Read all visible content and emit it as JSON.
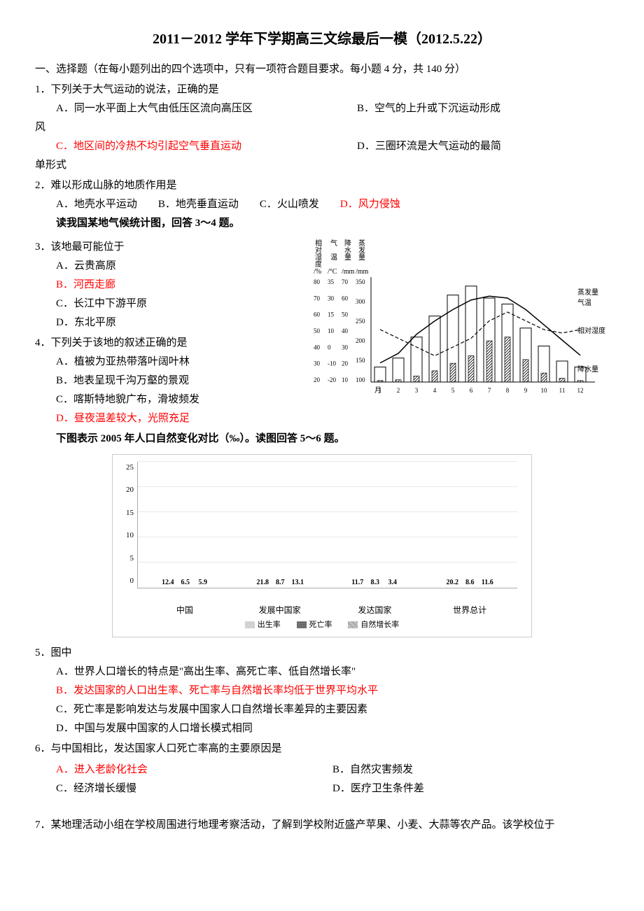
{
  "title": "2011－2012 学年下学期高三文综最后一模（2012.5.22）",
  "section1": {
    "header": "一、选择题（在每小题列出的四个选项中，只有一项符合题目要求。每小题 4 分，共 140 分）"
  },
  "q1": {
    "text": "1．下列关于大气运动的说法，正确的是",
    "optA": "A．同一水平面上大气由低压区流向高压区",
    "optB": "B．空气的上升或下沉运动形成",
    "wrapB": "风",
    "optC": "C．地区间的冷热不均引起空气垂直运动",
    "optD": "D．三圈环流是大气运动的最简",
    "wrapD": "单形式"
  },
  "q2": {
    "text": "2．难以形成山脉的地质作用是",
    "optA": "A．地壳水平运动",
    "optB": "B．地壳垂直运动",
    "optC": "C．火山喷发",
    "optD": "D．风力侵蚀",
    "note": "读我国某地气候统计图，回答 3～4 题。"
  },
  "q3": {
    "text": "3．该地最可能位于",
    "optA": "A．云贵高原",
    "optB": "B．河西走廊",
    "optC": "C．长江中下游平原",
    "optD": "D．东北平原"
  },
  "q4": {
    "text": "4．下列关于该地的叙述正确的是",
    "optA": "A．植被为亚热带落叶阔叶林",
    "optB": "B．地表呈现千沟万壑的景观",
    "optC": "C．喀斯特地貌广布，滑坡频发",
    "optD": "D．昼夜温差较大，光照充足",
    "note": "下图表示 2005 年人口自然变化对比（‰）。读图回答 5～6 题。"
  },
  "climate_chart": {
    "y_axis_1": {
      "label": "相对湿度/%",
      "ticks": [
        80,
        70,
        60,
        50,
        40,
        30,
        20
      ]
    },
    "y_axis_2": {
      "label": "气温/°C",
      "ticks": [
        35,
        30,
        15,
        10,
        0,
        -10,
        -20
      ]
    },
    "y_axis_3": {
      "label": "降水量/mm",
      "ticks": [
        70,
        60,
        50,
        40,
        30,
        20,
        10
      ]
    },
    "y_axis_4": {
      "label": "蒸发量/mm",
      "ticks": [
        350,
        300,
        250,
        200,
        150,
        100
      ]
    },
    "x_ticks": [
      "1",
      "2",
      "3",
      "4",
      "5",
      "6",
      "7",
      "8",
      "9",
      "10",
      "11",
      "12"
    ],
    "x_label": "月",
    "series": {
      "evaporation": {
        "label": "蒸发量",
        "type": "bar_outline",
        "values": [
          50,
          80,
          150,
          220,
          290,
          320,
          280,
          260,
          180,
          120,
          70,
          50
        ]
      },
      "temperature": {
        "label": "气温",
        "type": "line_solid",
        "values": [
          -10,
          -5,
          5,
          12,
          18,
          23,
          25,
          24,
          18,
          10,
          2,
          -6
        ]
      },
      "humidity": {
        "label": "相对湿度",
        "type": "line_dashed",
        "values": [
          50,
          45,
          40,
          35,
          40,
          45,
          55,
          60,
          55,
          50,
          48,
          50
        ]
      },
      "precipitation": {
        "label": "降水量",
        "type": "bar_hatched",
        "values": [
          2,
          3,
          8,
          15,
          25,
          35,
          55,
          60,
          30,
          12,
          5,
          2
        ]
      }
    }
  },
  "bar_chart": {
    "y_max": 25,
    "y_ticks": [
      25,
      20,
      15,
      10,
      5,
      0
    ],
    "categories": [
      "中国",
      "发展中国家",
      "发达国家",
      "世界总计"
    ],
    "series": [
      {
        "name": "出生率",
        "pattern": "birth",
        "values": [
          12.4,
          21.8,
          11.7,
          20.2
        ]
      },
      {
        "name": "死亡率",
        "pattern": "death",
        "values": [
          6.5,
          8.7,
          8.3,
          8.6
        ]
      },
      {
        "name": "自然增长率",
        "pattern": "natural",
        "values": [
          5.9,
          13.1,
          3.4,
          11.6
        ]
      }
    ],
    "legend": [
      "出生率",
      "死亡率",
      "自然增长率"
    ]
  },
  "q5": {
    "text": "5．图中",
    "optA": "A．世界人口增长的特点是\"高出生率、高死亡率、低自然增长率\"",
    "optB": "B．发达国家的人口出生率、死亡率与自然增长率均低于世界平均水平",
    "optC": "C．死亡率是影响发达与发展中国家人口自然增长率差异的主要因素",
    "optD": "D．中国与发展中国家的人口增长模式相同"
  },
  "q6": {
    "text": "6．与中国相比，发达国家人口死亡率高的主要原因是",
    "optA": "A．进入老龄化社会",
    "optB": "B．自然灾害频发",
    "optC": "C．经济增长缓慢",
    "optD": "D．医疗卫生条件差"
  },
  "q7": {
    "text": "7．某地理活动小组在学校周围进行地理考察活动，了解到学校附近盛产苹果、小麦、大蒜等农产品。该学校位于"
  }
}
